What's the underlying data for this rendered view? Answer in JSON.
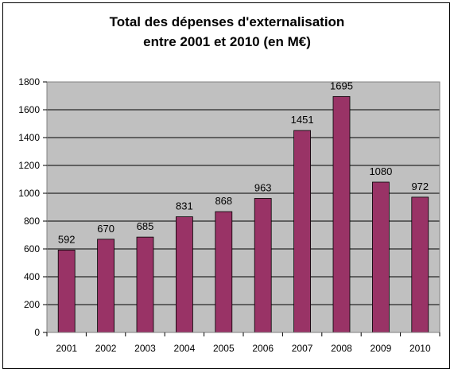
{
  "chart_data": {
    "type": "bar",
    "title_lines": [
      "Total des dépenses d'externalisation",
      "entre 2001 et 2010 (en M€)"
    ],
    "categories": [
      "2001",
      "2002",
      "2003",
      "2004",
      "2005",
      "2006",
      "2007",
      "2008",
      "2009",
      "2010"
    ],
    "values": [
      592,
      670,
      685,
      831,
      868,
      963,
      1451,
      1695,
      1080,
      972
    ],
    "ylim": [
      0,
      1800
    ],
    "yticks": [
      0,
      200,
      400,
      600,
      800,
      1000,
      1200,
      1400,
      1600,
      1800
    ],
    "grid": true,
    "legend": "none",
    "colors": {
      "bar": "#993366",
      "plot_bg": "#c0c0c0",
      "grid": "#000000"
    }
  }
}
